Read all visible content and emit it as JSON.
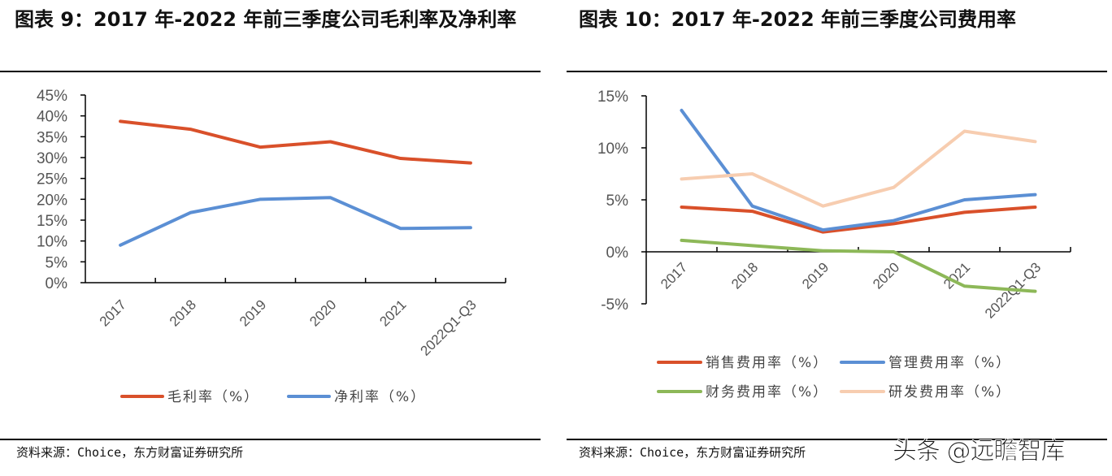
{
  "left": {
    "title": "图表 9：2017 年-2022 年前三季度公司毛利率及净利率",
    "source": "资料来源：Choice，东方财富证券研究所"
  },
  "right": {
    "title": "图表 10：2017 年-2022 年前三季度公司费用率",
    "source": "资料来源：Choice，东方财富证券研究所"
  },
  "watermark": "头条 @远瞻智库",
  "chart_data": [
    {
      "type": "line",
      "categories": [
        "2017",
        "2018",
        "2019",
        "2020",
        "2021",
        "2022Q1-Q3"
      ],
      "ylim": [
        0,
        45
      ],
      "yticks": [
        "0%",
        "5%",
        "10%",
        "15%",
        "20%",
        "25%",
        "30%",
        "35%",
        "40%",
        "45%"
      ],
      "legend": "bottom",
      "grid": false,
      "series": [
        {
          "name": "毛利率（%）",
          "color": "#d9502a",
          "values": [
            38.7,
            36.8,
            32.5,
            33.8,
            29.8,
            28.7
          ]
        },
        {
          "name": "净利率（%）",
          "color": "#5b8fd4",
          "values": [
            9.0,
            16.8,
            20.0,
            20.4,
            13.0,
            13.2
          ]
        }
      ]
    },
    {
      "type": "line",
      "categories": [
        "2017",
        "2018",
        "2019",
        "2020",
        "2021",
        "2022Q1-Q3"
      ],
      "ylim": [
        -5,
        15
      ],
      "yticks": [
        "-5%",
        "0%",
        "5%",
        "10%",
        "15%"
      ],
      "legend": "bottom",
      "grid": false,
      "series": [
        {
          "name": "销售费用率（%）",
          "color": "#d9502a",
          "values": [
            4.3,
            3.9,
            1.9,
            2.7,
            3.8,
            4.3
          ]
        },
        {
          "name": "管理费用率（%）",
          "color": "#5b8fd4",
          "values": [
            13.6,
            4.4,
            2.1,
            3.0,
            5.0,
            5.5
          ]
        },
        {
          "name": "财务费用率（%）",
          "color": "#8db858",
          "values": [
            1.1,
            0.6,
            0.1,
            0.0,
            -3.3,
            -3.8
          ]
        },
        {
          "name": "研发费用率（%）",
          "color": "#f7cdb0",
          "values": [
            7.0,
            7.5,
            4.4,
            6.2,
            11.6,
            10.6
          ]
        }
      ]
    }
  ]
}
